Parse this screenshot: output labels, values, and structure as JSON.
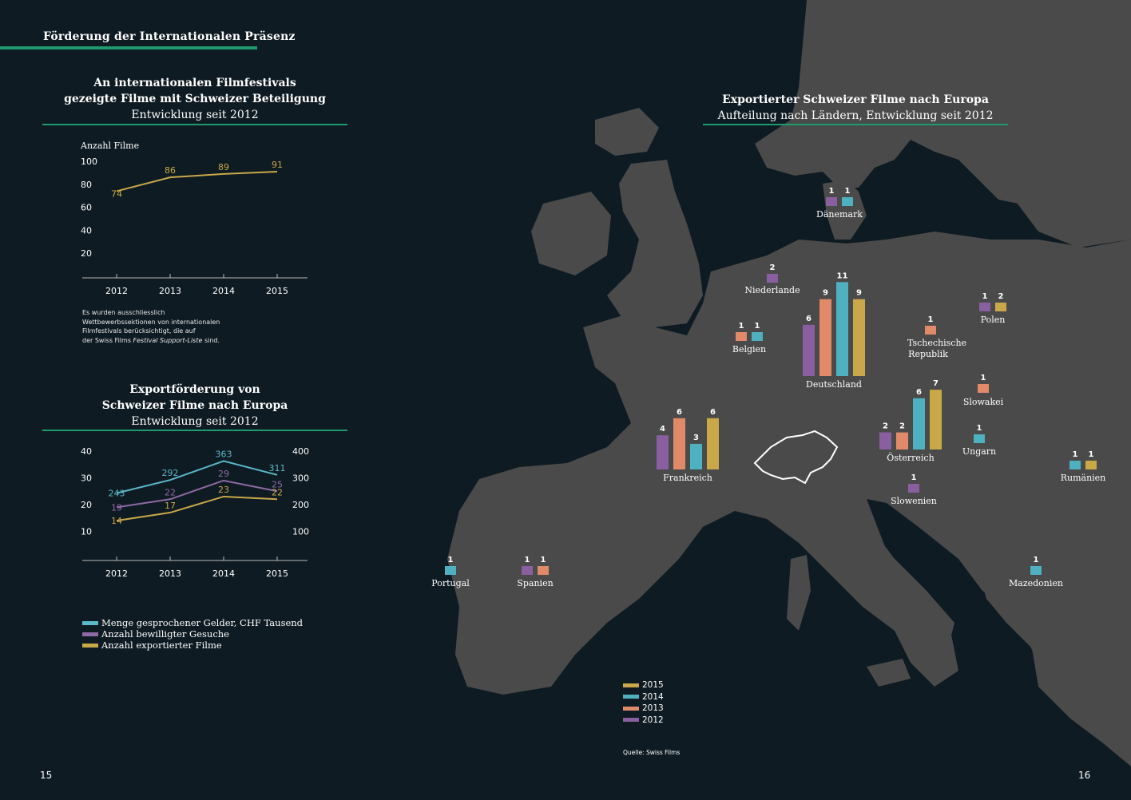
{
  "section_title": "Förderung der Internationalen Präsenz",
  "chart1_title": {
    "line1": "An internationalen Filmfestivals",
    "line2": "gezeigte Filme mit Schweizer Beteiligung",
    "subtitle": "Entwicklung seit 2012"
  },
  "chart2_title": {
    "line1": "Exportförderung von",
    "line2": "Schweizer Filme nach Europa",
    "subtitle": "Entwicklung seit 2012"
  },
  "map_title": {
    "line1": "Exportierter Schweizer Filme nach Europa",
    "subtitle": "Aufteilung nach Ländern, Entwicklung seit 2012"
  },
  "note": {
    "line1": "Es wurden ausschliesslich",
    "line2": "Wettbewerbssektionen von internationalen",
    "line3": "Filmfestivals berücksichtigt, die auf",
    "line4_pre": "der Swiss Films ",
    "line4_em": "Festival Support-Liste",
    "line4_post": " sind."
  },
  "legend_left": [
    {
      "label": "Menge gesprochener Gelder, CHF Tausend",
      "color": "#5bb8c9"
    },
    {
      "label": "Anzahl bewilligter Gesuche",
      "color": "#8e6aa6"
    },
    {
      "label": "Anzahl exportierter Filme",
      "color": "#c9a84a"
    }
  ],
  "legend_right": [
    {
      "label": "2015",
      "color": "#c9a84a"
    },
    {
      "label": "2014",
      "color": "#4fb0c0"
    },
    {
      "label": "2013",
      "color": "#e08a6a"
    },
    {
      "label": "2012",
      "color": "#8a5fa0"
    }
  ],
  "source": "Quelle: Swiss Films",
  "page_left": "15",
  "page_right": "16",
  "chart_data": [
    {
      "type": "line",
      "ylabel": "Anzahl Filme",
      "x": [
        "2012",
        "2013",
        "2014",
        "2015"
      ],
      "yticks": [
        20,
        40,
        60,
        80,
        100
      ],
      "ylim": [
        0,
        100
      ],
      "series": [
        {
          "values": [
            74,
            86,
            89,
            91
          ],
          "color": "#c9a84a"
        }
      ]
    },
    {
      "type": "line",
      "x": [
        "2012",
        "2013",
        "2014",
        "2015"
      ],
      "yticks_left": [
        10,
        20,
        30,
        40
      ],
      "yticks_right": [
        100,
        200,
        300,
        400
      ],
      "ylim_left": [
        0,
        40
      ],
      "ylim_right": [
        0,
        400
      ],
      "series": [
        {
          "name": "Menge gesprochener Gelder, CHF Tausend",
          "values": [
            243,
            292,
            363,
            311
          ],
          "axis": "right",
          "color": "#5bb8c9"
        },
        {
          "name": "Anzahl bewilligter Gesuche",
          "values": [
            19,
            22,
            29,
            25
          ],
          "axis": "left",
          "color": "#8e6aa6"
        },
        {
          "name": "Anzahl exportierter Filme",
          "values": [
            14,
            17,
            23,
            22
          ],
          "axis": "left",
          "color": "#c9a84a"
        }
      ]
    },
    {
      "type": "bar",
      "series_names": [
        "2012",
        "2013",
        "2014",
        "2015"
      ],
      "countries": [
        {
          "name": "Dänemark",
          "values": [
            1,
            null,
            1,
            null
          ]
        },
        {
          "name": "Niederlande",
          "values": [
            2,
            null,
            null,
            null
          ]
        },
        {
          "name": "Belgien",
          "values": [
            null,
            1,
            1,
            null
          ]
        },
        {
          "name": "Deutschland",
          "values": [
            6,
            9,
            11,
            9
          ]
        },
        {
          "name": "Tschechische Republik",
          "values": [
            null,
            1,
            null,
            null
          ]
        },
        {
          "name": "Polen",
          "values": [
            1,
            null,
            null,
            2
          ]
        },
        {
          "name": "Slowakei",
          "values": [
            null,
            1,
            null,
            null
          ]
        },
        {
          "name": "Frankreich",
          "values": [
            4,
            6,
            3,
            6
          ]
        },
        {
          "name": "Österreich",
          "values": [
            2,
            2,
            6,
            7
          ]
        },
        {
          "name": "Ungarn",
          "values": [
            null,
            null,
            1,
            null
          ]
        },
        {
          "name": "Rumänien",
          "values": [
            null,
            null,
            1,
            1
          ]
        },
        {
          "name": "Slowenien",
          "values": [
            1,
            null,
            null,
            null
          ]
        },
        {
          "name": "Portugal",
          "values": [
            null,
            null,
            1,
            null
          ]
        },
        {
          "name": "Spanien",
          "values": [
            1,
            1,
            null,
            null
          ]
        },
        {
          "name": "Mazedonien",
          "values": [
            null,
            null,
            1,
            null
          ]
        }
      ]
    }
  ]
}
